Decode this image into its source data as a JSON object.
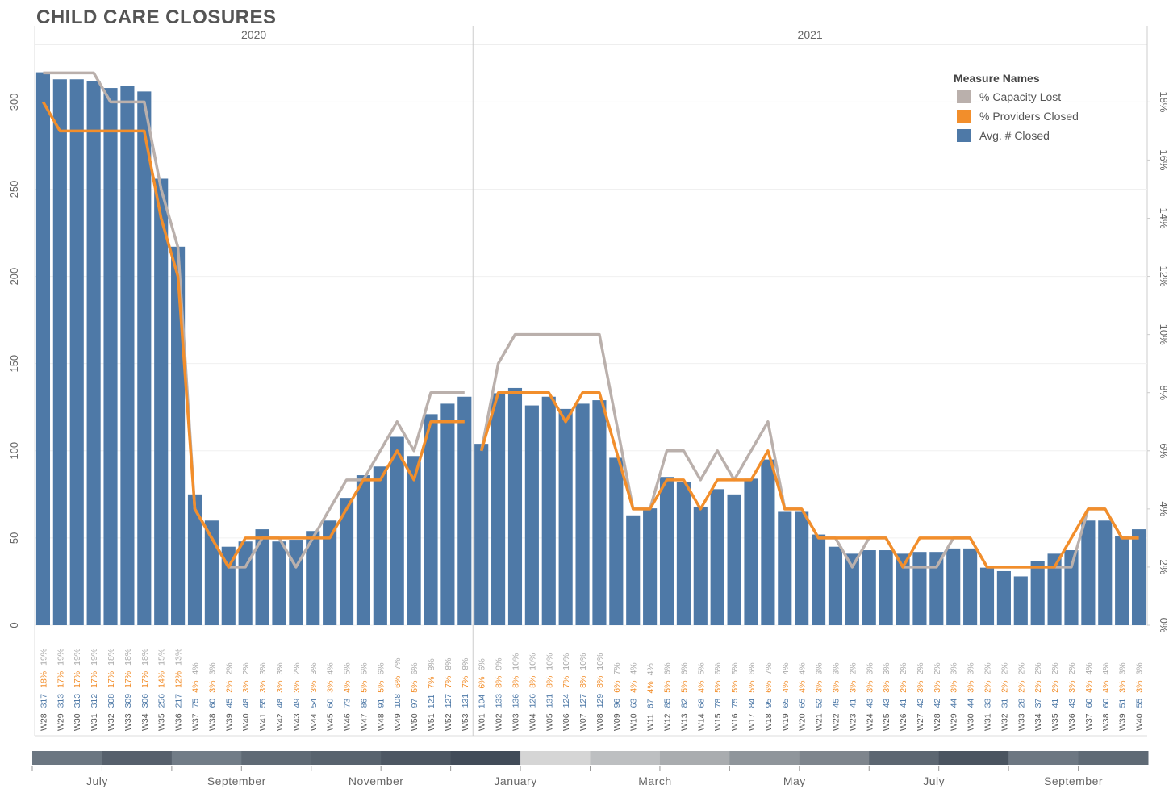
{
  "chart_data": {
    "type": "bar",
    "title": "CHILD CARE CLOSURES",
    "legend_title": "Measure Names",
    "legend": "top-right",
    "grid": true,
    "ylim": [
      0,
      333
    ],
    "yticks": [
      0,
      50,
      100,
      150,
      200,
      250,
      300
    ],
    "y2lim": [
      0,
      19.98
    ],
    "y2ticks": [
      {
        "value": 0,
        "label": "0%"
      },
      {
        "value": 2,
        "label": "2%"
      },
      {
        "value": 4,
        "label": "4%"
      },
      {
        "value": 6,
        "label": "6%"
      },
      {
        "value": 8,
        "label": "8%"
      },
      {
        "value": 10,
        "label": "10%"
      },
      {
        "value": 12,
        "label": "12%"
      },
      {
        "value": 14,
        "label": "14%"
      },
      {
        "value": 16,
        "label": "16%"
      },
      {
        "value": 18,
        "label": "18%"
      }
    ],
    "series": [
      {
        "name": "% Capacity Lost",
        "color": "#bab0ac",
        "type": "line",
        "axis": "y2"
      },
      {
        "name": "% Providers Closed",
        "color": "#f28e2b",
        "type": "line",
        "axis": "y2"
      },
      {
        "name": "Avg. # Closed",
        "color": "#4e79a7",
        "type": "bar"
      }
    ],
    "panels": [
      {
        "label": "2020",
        "categories": [
          "W28",
          "W29",
          "W30",
          "W31",
          "W32",
          "W33",
          "W34",
          "W35",
          "W36",
          "W37",
          "W38",
          "W39",
          "W40",
          "W41",
          "W42",
          "W43",
          "W44",
          "W45",
          "W46",
          "W47",
          "W48",
          "W49",
          "W50",
          "W51",
          "W52",
          "W53"
        ],
        "series": [
          {
            "values": [
              19,
              19,
              19,
              19,
              18,
              18,
              18,
              15,
              13,
              4,
              3,
              2,
              2,
              3,
              3,
              2,
              3,
              4,
              5,
              5,
              6,
              7,
              6,
              8,
              8,
              8
            ],
            "value_labels": [
              "19%",
              "19%",
              "19%",
              "19%",
              "18%",
              "18%",
              "18%",
              "15%",
              "13%",
              "4%",
              "3%",
              "2%",
              "2%",
              "3%",
              "3%",
              "2%",
              "3%",
              "4%",
              "5%",
              "5%",
              "6%",
              "7%",
              "6%",
              "8%",
              "8%",
              "8%"
            ]
          },
          {
            "values": [
              18,
              17,
              17,
              17,
              17,
              17,
              17,
              14,
              12,
              4,
              3,
              2,
              3,
              3,
              3,
              3,
              3,
              3,
              4,
              5,
              5,
              6,
              5,
              7,
              7,
              7
            ],
            "value_labels": [
              "18%",
              "17%",
              "17%",
              "17%",
              "17%",
              "17%",
              "17%",
              "14%",
              "12%",
              "4%",
              "3%",
              "2%",
              "3%",
              "3%",
              "3%",
              "3%",
              "3%",
              "3%",
              "4%",
              "5%",
              "5%",
              "6%",
              "5%",
              "7%",
              "7%",
              "7%"
            ]
          },
          {
            "values": [
              317,
              313,
              313,
              312,
              308,
              309,
              306,
              256,
              217,
              75,
              60,
              45,
              48,
              55,
              48,
              49,
              54,
              60,
              73,
              86,
              91,
              108,
              97,
              121,
              127,
              131
            ]
          }
        ]
      },
      {
        "label": "2021",
        "categories": [
          "W01",
          "W02",
          "W03",
          "W04",
          "W05",
          "W06",
          "W07",
          "W08",
          "W09",
          "W10",
          "W11",
          "W12",
          "W13",
          "W14",
          "W15",
          "W16",
          "W17",
          "W18",
          "W19",
          "W20",
          "W21",
          "W22",
          "W23",
          "W24",
          "W25",
          "W26",
          "W27",
          "W28",
          "W29",
          "W30",
          "W31",
          "W32",
          "W33",
          "W34",
          "W35",
          "W36",
          "W37",
          "W38",
          "W39",
          "W40"
        ],
        "series": [
          {
            "values": [
              6,
              9,
              10,
              10,
              10,
              10,
              10,
              10,
              7,
              4,
              4,
              6,
              6,
              5,
              6,
              5,
              6,
              7,
              4,
              4,
              3,
              3,
              2,
              3,
              3,
              2,
              2,
              2,
              3,
              3,
              2,
              2,
              2,
              2,
              2,
              2,
              4,
              4,
              3,
              3
            ],
            "value_labels": [
              "6%",
              "9%",
              "10%",
              "10%",
              "10%",
              "10%",
              "10%",
              "10%",
              "7%",
              "4%",
              "4%",
              "6%",
              "6%",
              "5%",
              "6%",
              "5%",
              "6%",
              "7%",
              "4%",
              "4%",
              "3%",
              "3%",
              "2%",
              "3%",
              "3%",
              "2%",
              "2%",
              "2%",
              "3%",
              "3%",
              "2%",
              "2%",
              "2%",
              "2%",
              "2%",
              "2%",
              "4%",
              "4%",
              "3%",
              "3%"
            ]
          },
          {
            "values": [
              6,
              8,
              8,
              8,
              8,
              7,
              8,
              8,
              6,
              4,
              4,
              5,
              5,
              4,
              5,
              5,
              5,
              6,
              4,
              4,
              3,
              3,
              3,
              3,
              3,
              2,
              3,
              3,
              3,
              3,
              2,
              2,
              2,
              2,
              2,
              3,
              4,
              4,
              3,
              3
            ],
            "value_labels": [
              "6%",
              "8%",
              "8%",
              "8%",
              "8%",
              "7%",
              "8%",
              "8%",
              "6%",
              "4%",
              "4%",
              "5%",
              "5%",
              "4%",
              "5%",
              "5%",
              "5%",
              "6%",
              "4%",
              "4%",
              "3%",
              "3%",
              "3%",
              "3%",
              "3%",
              "2%",
              "3%",
              "3%",
              "3%",
              "3%",
              "2%",
              "2%",
              "2%",
              "2%",
              "2%",
              "3%",
              "4%",
              "4%",
              "3%",
              "3%"
            ]
          },
          {
            "values": [
              104,
              133,
              136,
              126,
              131,
              124,
              127,
              129,
              96,
              63,
              67,
              85,
              82,
              68,
              78,
              75,
              84,
              95,
              65,
              65,
              52,
              45,
              41,
              43,
              43,
              41,
              42,
              42,
              44,
              44,
              33,
              31,
              28,
              37,
              41,
              43,
              60,
              60,
              51,
              55
            ]
          }
        ]
      }
    ],
    "month_strip": {
      "labels": [
        "July",
        "September",
        "November",
        "January",
        "March",
        "May",
        "July",
        "September"
      ],
      "colors": [
        "#6b7681",
        "#56606c",
        "#717c87",
        "#5f6a75",
        "#58636e",
        "#4d5763",
        "#414b58",
        "#d5d5d5",
        "#bdbfc1",
        "#a9acaf",
        "#8f959b",
        "#7e858d",
        "#5c6671",
        "#4a5460",
        "#6d7782",
        "#5f6a75"
      ]
    }
  }
}
